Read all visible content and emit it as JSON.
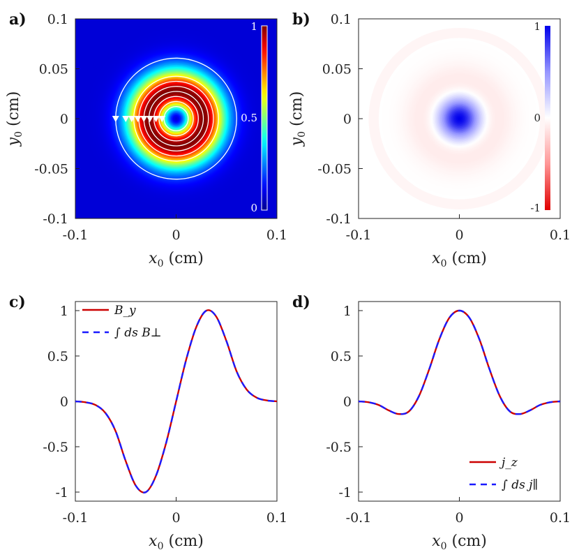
{
  "chart_data": [
    {
      "panel": "a)",
      "type": "heatmap",
      "xlabel": "x0 (cm)",
      "ylabel": "y0 (cm)",
      "xlim": [
        -0.1,
        0.1
      ],
      "ylim": [
        -0.1,
        0.1
      ],
      "xticks": [
        "-0.1",
        "0",
        "0.1"
      ],
      "yticks": [
        "0.1",
        "0.05",
        "0",
        "-0.05",
        "-0.1"
      ],
      "colormap": "jet",
      "colorbar": {
        "range": [
          0,
          1
        ],
        "ticks": [
          "1",
          "0.5",
          "0"
        ]
      },
      "field": "normalized magnitude, ring peak at r = 0.028 cm",
      "contour_radii": [
        0.012,
        0.017,
        0.022,
        0.027,
        0.032,
        0.037,
        0.042,
        0.06
      ],
      "markers_x": [
        -0.06,
        -0.05,
        -0.044,
        -0.038,
        -0.032,
        -0.026,
        -0.02,
        -0.014
      ],
      "marker_y": 0
    },
    {
      "panel": "b)",
      "type": "heatmap",
      "xlabel": "x0 (cm)",
      "ylabel": "y0 (cm)",
      "xlim": [
        -0.1,
        0.1
      ],
      "ylim": [
        -0.1,
        0.1
      ],
      "xticks": [
        "-0.1",
        "0",
        "0.1"
      ],
      "yticks": [
        "0.1",
        "0.05",
        "0",
        "-0.05",
        "-0.1"
      ],
      "colormap": "red-white-blue",
      "colorbar": {
        "range": [
          -1,
          1
        ],
        "ticks": [
          "1",
          "0",
          "-1"
        ]
      },
      "field": "normalized current density, positive core, negative ring to r = 0.09 cm"
    },
    {
      "panel": "c)",
      "type": "line",
      "xlabel": "x0 (cm)",
      "xlim": [
        -0.1,
        0.1
      ],
      "ylim": [
        -1.1,
        1.1
      ],
      "xticks": [
        "-0.1",
        "0",
        "0.1"
      ],
      "yticks": [
        "1",
        "0.5",
        "0",
        "-0.5",
        "-1"
      ],
      "series": [
        {
          "name": "B_y",
          "style": "solid",
          "color": "#cc0000",
          "x": [
            -0.1,
            -0.09,
            -0.08,
            -0.07,
            -0.06,
            -0.05,
            -0.04,
            -0.03,
            -0.02,
            -0.01,
            0,
            0.01,
            0.02,
            0.03,
            0.04,
            0.05,
            0.06,
            0.07,
            0.08,
            0.09,
            0.1
          ],
          "y": [
            0,
            -0.01,
            -0.04,
            -0.13,
            -0.33,
            -0.66,
            -0.93,
            -1.0,
            -0.82,
            -0.46,
            0,
            0.46,
            0.82,
            1.0,
            0.93,
            0.66,
            0.33,
            0.13,
            0.04,
            0.01,
            0
          ]
        },
        {
          "name": "∫ ds B⊥",
          "style": "dashed",
          "color": "#1a1aff",
          "x": [
            -0.1,
            -0.09,
            -0.08,
            -0.07,
            -0.06,
            -0.05,
            -0.04,
            -0.03,
            -0.02,
            -0.01,
            0,
            0.01,
            0.02,
            0.03,
            0.04,
            0.05,
            0.06,
            0.07,
            0.08,
            0.09,
            0.1
          ],
          "y": [
            0,
            -0.01,
            -0.04,
            -0.13,
            -0.33,
            -0.66,
            -0.93,
            -1.0,
            -0.82,
            -0.46,
            0,
            0.46,
            0.82,
            1.0,
            0.93,
            0.66,
            0.33,
            0.13,
            0.04,
            0.01,
            0
          ]
        }
      ],
      "legend": [
        "B_y",
        "∫ ds B⊥"
      ],
      "legend_position": "top-left"
    },
    {
      "panel": "d)",
      "type": "line",
      "xlabel": "x0 (cm)",
      "xlim": [
        -0.1,
        0.1
      ],
      "ylim": [
        -1.1,
        1.1
      ],
      "xticks": [
        "-0.1",
        "0",
        "0.1"
      ],
      "yticks": [
        "1",
        "0.5",
        "0",
        "-0.5",
        "-1"
      ],
      "series": [
        {
          "name": "j_z",
          "style": "solid",
          "color": "#cc0000",
          "x": [
            -0.1,
            -0.09,
            -0.08,
            -0.07,
            -0.06,
            -0.05,
            -0.04,
            -0.03,
            -0.02,
            -0.01,
            0,
            0.01,
            0.02,
            0.03,
            0.04,
            0.05,
            0.06,
            0.07,
            0.08,
            0.09,
            0.1
          ],
          "y": [
            0,
            -0.01,
            -0.04,
            -0.1,
            -0.14,
            -0.11,
            0.06,
            0.35,
            0.68,
            0.92,
            1.0,
            0.92,
            0.68,
            0.35,
            0.06,
            -0.11,
            -0.14,
            -0.1,
            -0.04,
            -0.01,
            0
          ]
        },
        {
          "name": "∫ ds j∥",
          "style": "dashed",
          "color": "#1a1aff",
          "x": [
            -0.1,
            -0.09,
            -0.08,
            -0.07,
            -0.06,
            -0.05,
            -0.04,
            -0.03,
            -0.02,
            -0.01,
            0,
            0.01,
            0.02,
            0.03,
            0.04,
            0.05,
            0.06,
            0.07,
            0.08,
            0.09,
            0.1
          ],
          "y": [
            0,
            -0.01,
            -0.04,
            -0.1,
            -0.14,
            -0.11,
            0.06,
            0.35,
            0.68,
            0.92,
            1.0,
            0.92,
            0.68,
            0.35,
            0.06,
            -0.11,
            -0.14,
            -0.1,
            -0.04,
            -0.01,
            0
          ]
        }
      ],
      "legend": [
        "j_z",
        "∫ ds j∥"
      ],
      "legend_position": "bottom-right"
    }
  ]
}
